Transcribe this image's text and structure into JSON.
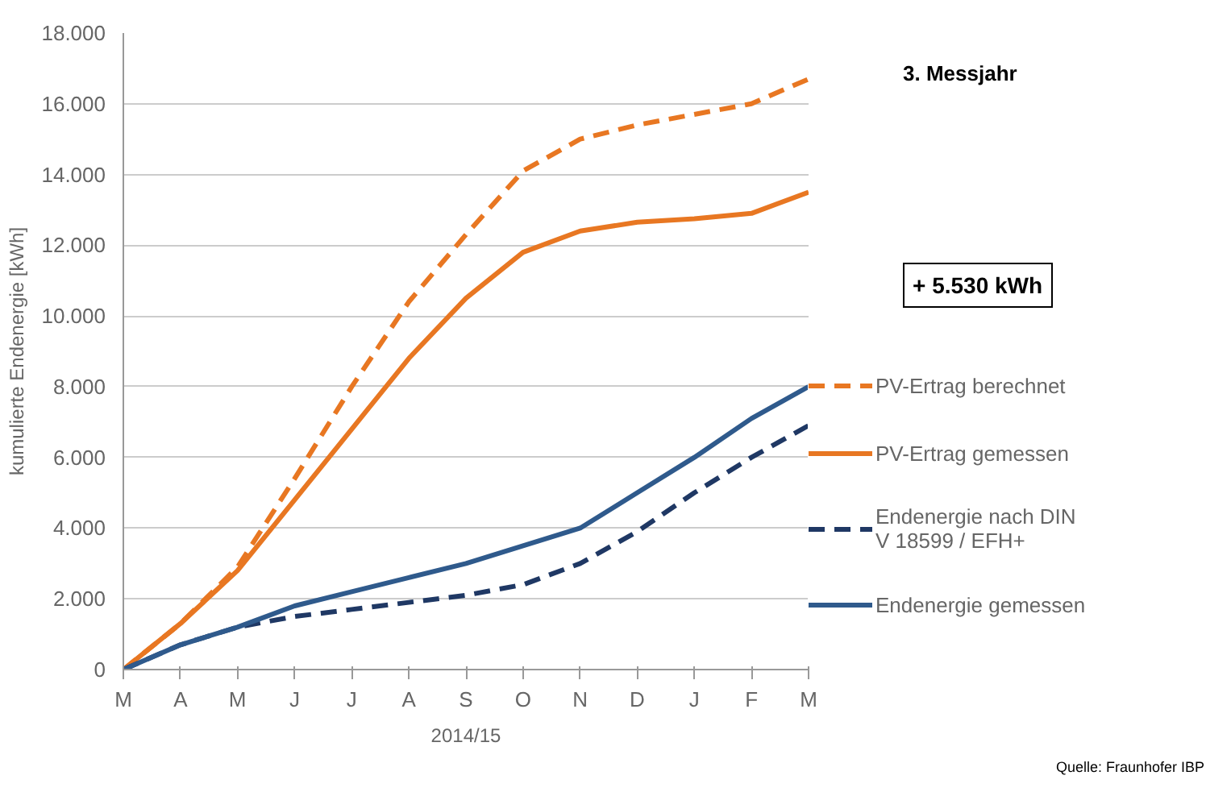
{
  "chart_data": {
    "type": "line",
    "xlabel": "2014/15",
    "ylabel": "kumulierte Endenergie [kWh]",
    "categories": [
      "M",
      "A",
      "M",
      "J",
      "J",
      "A",
      "S",
      "O",
      "N",
      "D",
      "J",
      "F",
      "M"
    ],
    "ylim": [
      0,
      18000
    ],
    "yticks": [
      {
        "value": 0,
        "label": "0"
      },
      {
        "value": 2000,
        "label": "2.000"
      },
      {
        "value": 4000,
        "label": "4.000"
      },
      {
        "value": 6000,
        "label": "6.000"
      },
      {
        "value": 8000,
        "label": "8.000"
      },
      {
        "value": 10000,
        "label": "10.000"
      },
      {
        "value": 12000,
        "label": "12.000"
      },
      {
        "value": 14000,
        "label": "14.000"
      },
      {
        "value": 16000,
        "label": "16.000"
      },
      {
        "value": 18000,
        "label": "18.000"
      }
    ],
    "grid": "y",
    "legend": "right",
    "marker": "none",
    "series": [
      {
        "name": "PV-Ertrag berechnet",
        "color": "#e87722",
        "line_style": "dashed",
        "values": [
          0,
          1300,
          2900,
          5400,
          8000,
          10400,
          12300,
          14100,
          15000,
          15400,
          15700,
          16000,
          16700
        ]
      },
      {
        "name": "PV-Ertrag gemessen",
        "color": "#e87722",
        "line_style": "solid",
        "values": [
          0,
          1300,
          2800,
          4800,
          6800,
          8800,
          10500,
          11800,
          12400,
          12650,
          12750,
          12900,
          13500
        ]
      },
      {
        "name": "Endenergie nach DIN\nV 18599 / EFH+",
        "color": "#1f3864",
        "line_style": "dashed",
        "values": [
          0,
          700,
          1200,
          1500,
          1700,
          1900,
          2100,
          2400,
          3000,
          3900,
          5000,
          6000,
          6900
        ]
      },
      {
        "name": "Endenergie gemessen",
        "color": "#2f5a8c",
        "line_style": "solid",
        "values": [
          0,
          700,
          1200,
          1800,
          2200,
          2600,
          3000,
          3500,
          4000,
          5000,
          6000,
          7100,
          8000
        ]
      }
    ],
    "annotations": [
      "3. Messjahr",
      "+ 5.530 kWh",
      "Quelle: Fraunhofer IBP"
    ]
  }
}
